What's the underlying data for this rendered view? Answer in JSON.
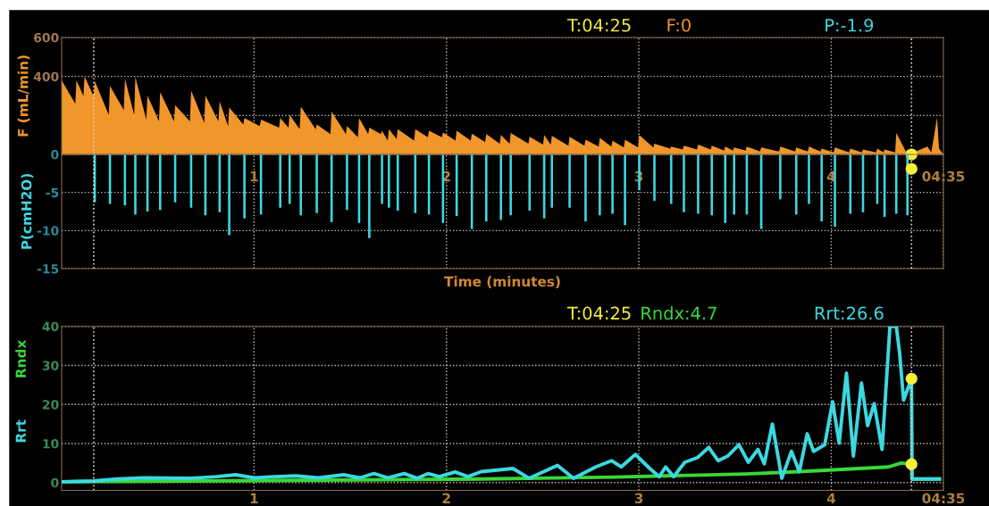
{
  "chart_data": [
    {
      "type": "area",
      "ylabel": "F (mL/min)",
      "annotations": [
        "T:04:25",
        "F:0",
        "P:-1.9"
      ],
      "xlim": [
        0,
        4.583
      ],
      "xticks": [
        1,
        2,
        3,
        4
      ],
      "ylim": [
        0,
        600
      ],
      "yticks": [
        {
          "value": 200,
          "label": null
        },
        400,
        600
      ],
      "tick_labels": "y",
      "grid": true,
      "ref_lines": [
        {
          "axis": "x",
          "value": 0.167,
          "color": "#d8d0c8",
          "line_style": "dotted"
        },
        {
          "axis": "x",
          "value": 4.417,
          "color": "#d8d0c8",
          "line_style": "dotted"
        }
      ],
      "series": [
        {
          "color": "#f0962a",
          "x": [
            0,
            0.071,
            0.077,
            0.113,
            0.119,
            0.166,
            0.172,
            0.245,
            0.251,
            0.323,
            0.329,
            0.377,
            0.383,
            0.44,
            0.446,
            0.506,
            0.512,
            0.584,
            0.59,
            0.667,
            0.673,
            0.741,
            0.747,
            0.815,
            0.821,
            0.865,
            0.871,
            0.944,
            0.95,
            1.03,
            1.036,
            1.13,
            1.136,
            1.179,
            1.185,
            1.237,
            1.243,
            1.32,
            1.326,
            1.397,
            1.403,
            1.477,
            1.483,
            1.54,
            1.546,
            1.593,
            1.599,
            1.659,
            1.665,
            1.695,
            1.701,
            1.741,
            1.747,
            1.832,
            1.838,
            1.903,
            1.909,
            1.976,
            1.982,
            2.047,
            2.053,
            2.126,
            2.132,
            2.201,
            2.207,
            2.277,
            2.283,
            2.328,
            2.334,
            2.426,
            2.432,
            2.502,
            2.508,
            2.542,
            2.548,
            2.634,
            2.64,
            2.717,
            2.723,
            2.791,
            2.797,
            2.857,
            2.863,
            2.922,
            2.928,
            2.996,
            3.002,
            3.075,
            3.081,
            3.162,
            3.168,
            3.228,
            3.234,
            3.302,
            3.308,
            3.373,
            3.379,
            3.443,
            3.449,
            3.489,
            3.495,
            3.555,
            3.561,
            3.63,
            3.636,
            3.729,
            3.735,
            3.812,
            3.818,
            3.878,
            3.884,
            3.944,
            3.95,
            4.013,
            4.019,
            4.093,
            4.099,
            4.159,
            4.165,
            4.233,
            4.239,
            4.271,
            4.277,
            4.332,
            4.338,
            4.39,
            4.396,
            4.417,
            4.45,
            4.5,
            4.52,
            4.55,
            4.56,
            4.583
          ],
          "values": [
            380,
            260,
            380,
            300,
            400,
            300,
            377,
            203,
            352,
            228,
            388,
            203,
            397,
            179,
            302,
            170,
            319,
            170,
            253,
            170,
            327,
            162,
            302,
            170,
            273,
            145,
            240,
            154,
            187,
            145,
            179,
            137,
            187,
            137,
            203,
            129,
            245,
            129,
            154,
            104,
            220,
            104,
            145,
            88,
            187,
            104,
            137,
            104,
            121,
            71,
            129,
            79,
            129,
            71,
            129,
            88,
            121,
            88,
            112,
            71,
            121,
            71,
            107,
            63,
            104,
            55,
            100,
            55,
            110,
            55,
            90,
            50,
            100,
            50,
            95,
            45,
            90,
            45,
            75,
            40,
            85,
            40,
            70,
            35,
            75,
            35,
            100,
            35,
            55,
            30,
            40,
            25,
            45,
            25,
            50,
            25,
            45,
            20,
            40,
            20,
            35,
            20,
            40,
            15,
            35,
            15,
            40,
            15,
            35,
            15,
            40,
            15,
            30,
            10,
            35,
            10,
            30,
            10,
            25,
            10,
            30,
            10,
            25,
            10,
            110,
            10,
            20,
            0,
            20,
            40,
            10,
            190,
            30,
            0
          ]
        },
        {
          "type": "scatter",
          "color": "#f4f03a",
          "marker": "circle",
          "x": [
            4.417
          ],
          "values": [
            0
          ]
        }
      ]
    },
    {
      "type": "bar",
      "ylabel": "P(cmH2O)",
      "xlabel": "Time (minutes)",
      "xlim": [
        0,
        4.583
      ],
      "xticks": [
        1,
        2,
        3,
        4,
        {
          "value": 4.583,
          "label": "04:35"
        }
      ],
      "ylim": [
        -15,
        0
      ],
      "yticks": [
        0,
        -5,
        -10,
        -15
      ],
      "grid": true,
      "ref_lines": [
        {
          "axis": "x",
          "value": 0.167,
          "color": "#d8d0c8",
          "line_style": "dotted"
        },
        {
          "axis": "x",
          "value": 4.417,
          "color": "#d8d0c8",
          "line_style": "dotted"
        }
      ],
      "series": [
        {
          "color": "#3cd8e0",
          "x": [
            0.172,
            0.251,
            0.329,
            0.383,
            0.446,
            0.512,
            0.59,
            0.673,
            0.747,
            0.821,
            0.871,
            0.95,
            1.036,
            1.136,
            1.185,
            1.243,
            1.326,
            1.403,
            1.483,
            1.546,
            1.599,
            1.665,
            1.701,
            1.747,
            1.838,
            1.909,
            1.982,
            2.053,
            2.132,
            2.207,
            2.283,
            2.334,
            2.432,
            2.508,
            2.548,
            2.64,
            2.723,
            2.797,
            2.863,
            2.928,
            3.002,
            3.081,
            3.168,
            3.234,
            3.308,
            3.379,
            3.449,
            3.495,
            3.561,
            3.636,
            3.735,
            3.818,
            3.884,
            3.95,
            4.019,
            4.099,
            4.165,
            4.239,
            4.277,
            4.338,
            4.396
          ],
          "values": [
            -6.3,
            -6.5,
            -6.7,
            -7.9,
            -7.5,
            -7.3,
            -6.3,
            -7,
            -8,
            -7.6,
            -10.6,
            -8.4,
            -7.9,
            -7,
            -6.5,
            -8,
            -7.7,
            -8.9,
            -7.3,
            -9,
            -11,
            -6.5,
            -7,
            -7.4,
            -7.7,
            -7.9,
            -9,
            -8.1,
            -9.8,
            -8.8,
            -8.6,
            -8,
            -7.4,
            -8.4,
            -7,
            -7,
            -8.8,
            -8,
            -7.8,
            -9.3,
            -4.7,
            -6.1,
            -6.5,
            -7.6,
            -7.8,
            -8,
            -9,
            -7.9,
            -7.9,
            -9.8,
            -5.9,
            -7.9,
            -6.5,
            -8.8,
            -9.5,
            -7.8,
            -7.6,
            -6.5,
            -8.2,
            -7.8,
            -8
          ]
        },
        {
          "type": "scatter",
          "color": "#f4f03a",
          "marker": "circle",
          "x": [
            4.417
          ],
          "values": [
            -1.9
          ]
        }
      ]
    },
    {
      "type": "line",
      "annotations": [
        "T:04:25",
        "Rndx:4.7",
        "Rrt:26.6"
      ],
      "xlim": [
        0,
        4.583
      ],
      "xticks": [
        1,
        2,
        3,
        4,
        {
          "value": 4.583,
          "label": "04:35"
        }
      ],
      "ylim": [
        -2,
        40
      ],
      "yticks": [
        0,
        10,
        20,
        30,
        40
      ],
      "grid": true,
      "line_style": "solid",
      "ref_lines": [
        {
          "axis": "x",
          "value": 0.167,
          "color": "#d8d0c8",
          "line_style": "dotted"
        },
        {
          "axis": "x",
          "value": 4.417,
          "color": "#d8d0c8",
          "line_style": "dotted"
        }
      ],
      "series": [
        {
          "name": "Rndx",
          "color": "#38d838",
          "x": [
            0,
            0.165,
            1.0,
            2.181,
            2.874,
            3.553,
            3.834,
            4.297,
            4.363,
            4.417,
            4.42,
            4.562
          ],
          "values": [
            0.2,
            0.3,
            0.5,
            0.9,
            1.4,
            2.2,
            2.8,
            4.0,
            5.0,
            4.7,
            0.9,
            0.9
          ]
        },
        {
          "name": "Rrt",
          "color": "#3cd8e0",
          "x": [
            0.0,
            0.165,
            0.292,
            0.425,
            0.673,
            0.805,
            0.904,
            1.003,
            1.102,
            1.218,
            1.334,
            1.466,
            1.549,
            1.623,
            1.698,
            1.78,
            1.847,
            1.904,
            1.962,
            2.045,
            2.111,
            2.181,
            2.263,
            2.346,
            2.429,
            2.577,
            2.66,
            2.776,
            2.858,
            2.908,
            2.982,
            3.057,
            3.106,
            3.139,
            3.181,
            3.239,
            3.305,
            3.363,
            3.412,
            3.462,
            3.52,
            3.569,
            3.619,
            3.652,
            3.694,
            3.743,
            3.793,
            3.834,
            3.875,
            3.908,
            3.966,
            4.007,
            4.041,
            4.079,
            4.115,
            4.157,
            4.189,
            4.223,
            4.264,
            4.305,
            4.338,
            4.355,
            4.376,
            4.417,
            4.42,
            4.562
          ],
          "values": [
            0.2,
            0.4,
            0.9,
            1.2,
            1.1,
            1.5,
            2.0,
            1.2,
            1.5,
            1.7,
            1.2,
            2.0,
            1.2,
            2.3,
            1.2,
            2.3,
            1.1,
            2.3,
            1.5,
            2.7,
            1.5,
            2.8,
            3.2,
            3.6,
            1.1,
            4.4,
            1.1,
            4.0,
            5.6,
            4.0,
            7.2,
            3.6,
            1.5,
            4.0,
            1.5,
            5.2,
            6.4,
            9.0,
            5.6,
            6.8,
            9.7,
            5.2,
            8.5,
            4.8,
            15.0,
            1.1,
            8.0,
            2.8,
            12.5,
            8.0,
            9.7,
            20.7,
            10.1,
            28.0,
            6.8,
            25.5,
            14.6,
            20.2,
            8.5,
            40,
            40,
            33.3,
            21.1,
            26.6,
            0.9,
            0.9
          ]
        },
        {
          "type": "scatter",
          "color": "#f4f03a",
          "marker": "circle",
          "x": [
            4.417,
            4.417
          ],
          "values": [
            26.6,
            4.7
          ]
        }
      ]
    }
  ]
}
